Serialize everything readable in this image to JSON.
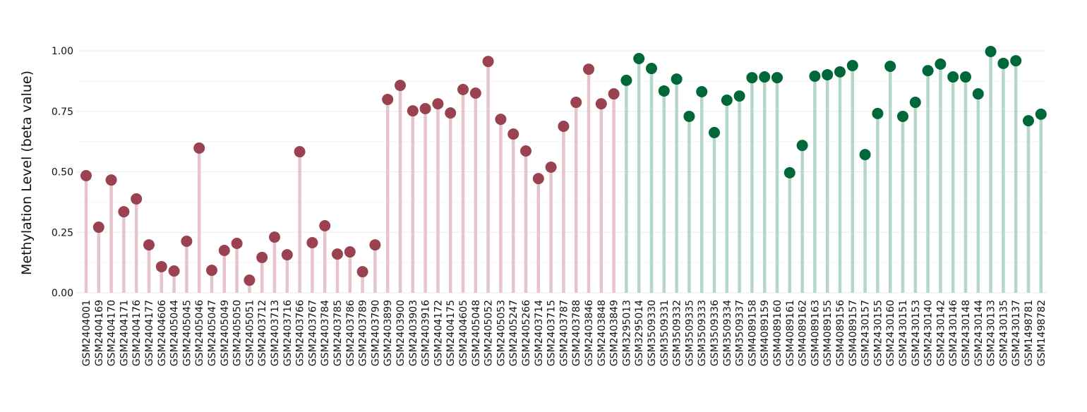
{
  "chart_data": {
    "type": "lollipop",
    "title": "",
    "xlabel": "",
    "ylabel": "Methylation Level (beta value)",
    "ylim": [
      0,
      1.0
    ],
    "yticks": [
      "0.00",
      "0.25",
      "0.50",
      "0.75",
      "1.00"
    ],
    "ytick_values": [
      0,
      0.25,
      0.5,
      0.75,
      1.0
    ],
    "grid": true,
    "colors": {
      "group1_dot": "#9a4250",
      "group1_stem": "#e3c5cb",
      "group2_dot": "#006838",
      "group2_stem": "#b5d6c8",
      "grid": "#ebebeb"
    },
    "series": [
      {
        "name": "group1",
        "categories": [
          "GSM2404001",
          "GSM2404169",
          "GSM2404170",
          "GSM2404171",
          "GSM2404176",
          "GSM2404177",
          "GSM2404606",
          "GSM2405044",
          "GSM2405045",
          "GSM2405046",
          "GSM2405047",
          "GSM2405049",
          "GSM2405050",
          "GSM2405051",
          "GSM2403712",
          "GSM2403713",
          "GSM2403716",
          "GSM2403766",
          "GSM2403767",
          "GSM2403784",
          "GSM2403785",
          "GSM2403786",
          "GSM2403789",
          "GSM2403790",
          "GSM2403899",
          "GSM2403900",
          "GSM2403903",
          "GSM2403916",
          "GSM2404172",
          "GSM2404175",
          "GSM2404605",
          "GSM2405048",
          "GSM2405052",
          "GSM2405053",
          "GSM2405247",
          "GSM2405266",
          "GSM2403714",
          "GSM2403715",
          "GSM2403787",
          "GSM2403788",
          "GSM2403846",
          "GSM2403848",
          "GSM2403849"
        ],
        "values": [
          0.484,
          0.271,
          0.466,
          0.335,
          0.388,
          0.198,
          0.108,
          0.09,
          0.213,
          0.598,
          0.093,
          0.175,
          0.204,
          0.052,
          0.146,
          0.23,
          0.157,
          0.583,
          0.207,
          0.277,
          0.16,
          0.169,
          0.087,
          0.198,
          0.799,
          0.857,
          0.752,
          0.761,
          0.781,
          0.743,
          0.84,
          0.825,
          0.956,
          0.717,
          0.656,
          0.586,
          0.472,
          0.519,
          0.688,
          0.787,
          0.924,
          0.781,
          0.822
        ]
      },
      {
        "name": "group2",
        "categories": [
          "GSM3295013",
          "GSM3295014",
          "GSM3509330",
          "GSM3509331",
          "GSM3509332",
          "GSM3509335",
          "GSM3509333",
          "GSM3509336",
          "GSM3509334",
          "GSM3509337",
          "GSM4089158",
          "GSM4089159",
          "GSM4089160",
          "GSM4089161",
          "GSM4089162",
          "GSM4089163",
          "GSM4089155",
          "GSM4089156",
          "GSM4089157",
          "GSM2430157",
          "GSM2430155",
          "GSM2430160",
          "GSM2430151",
          "GSM2430153",
          "GSM2430140",
          "GSM2430142",
          "GSM2430146",
          "GSM2430148",
          "GSM2430144",
          "GSM2430133",
          "GSM2430135",
          "GSM2430137",
          "GSM1498781",
          "GSM1498782"
        ],
        "values": [
          0.878,
          0.968,
          0.927,
          0.834,
          0.883,
          0.729,
          0.831,
          0.662,
          0.796,
          0.813,
          0.889,
          0.892,
          0.889,
          0.496,
          0.609,
          0.895,
          0.901,
          0.913,
          0.939,
          0.571,
          0.741,
          0.936,
          0.729,
          0.787,
          0.918,
          0.945,
          0.892,
          0.892,
          0.822,
          0.997,
          0.948,
          0.959,
          0.711,
          0.738
        ]
      }
    ]
  }
}
